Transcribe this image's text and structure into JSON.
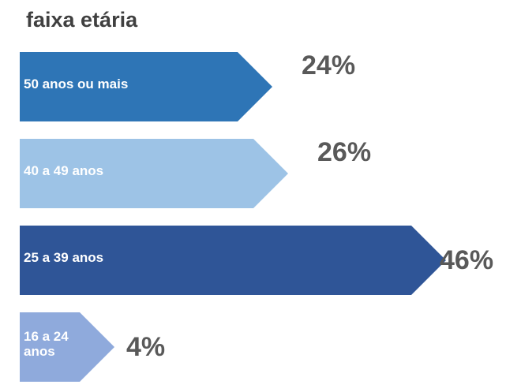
{
  "chart_data": {
    "type": "bar",
    "orientation": "horizontal",
    "title": "faixa etária",
    "categories": [
      "50 anos ou mais",
      "40 a 49 anos",
      "25 a 39 anos",
      "16 a 24 anos"
    ],
    "values": [
      24,
      26,
      46,
      4
    ],
    "value_labels": [
      "24%",
      "26%",
      "46%",
      "4%"
    ],
    "colors": [
      "#2e75b6",
      "#9dc3e6",
      "#2f5597",
      "#8faadc"
    ]
  }
}
